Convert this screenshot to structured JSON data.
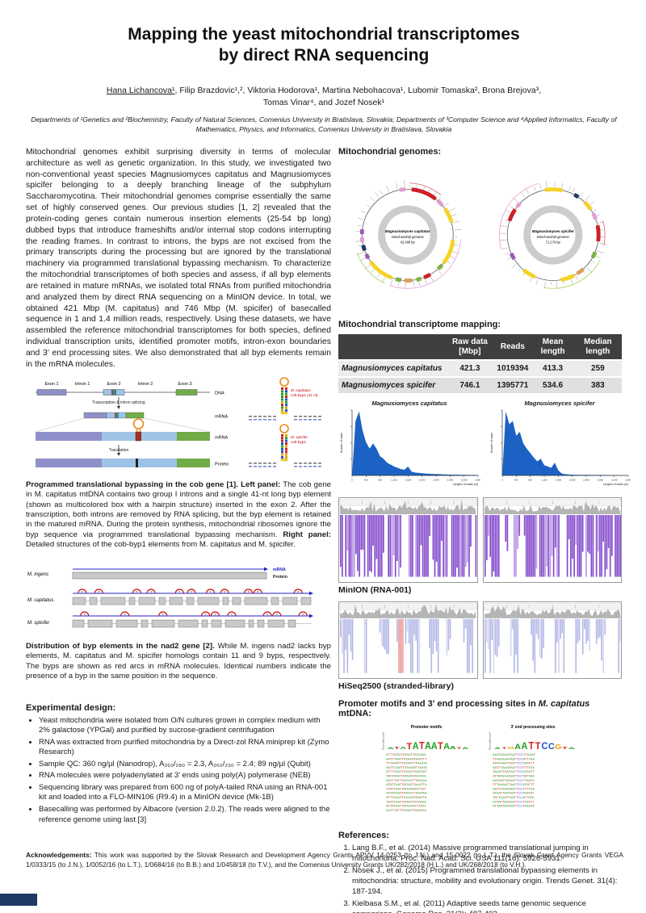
{
  "poster": {
    "title_line1": "Mapping the yeast mitochondrial transcriptomes",
    "title_line2": "by direct RNA sequencing",
    "authors": {
      "presenter": "Hana Lichancova¹",
      "line1_rest": ", Filip Brazdovic¹,², Viktoria Hodorova¹, Martina Nebohacova¹, Lubomir Tomaska², Brona Brejova³,",
      "line2": "Tomas Vinar⁴, and Jozef Nosek¹"
    },
    "affiliations": "Departments of ¹Genetics and ²Biochemistry, Faculty of Natural Sciences, Comenius University in Bratislava, Slovakia; Departments of ³Computer Science and ⁴Applied Informatics, Faculty of Mathematics, Physics, and Informatics, Comenius University in Bratislava, Slovakia",
    "abstract": "Mitochondrial genomes exhibit surprising diversity in terms of molecular architecture as well as genetic organization. In this study, we investigated two non-conventional yeast species Magnusiomyces capitatus and Magnusiomyces spicifer belonging to a deeply branching lineage of the subphylum Saccharomycotina. Their mitochondrial genomes comprise essentially the same set of highly conserved genes. Our previous studies [1, 2] revealed that the protein-coding genes contain numerous insertion elements (25-54 bp long) dubbed byps that introduce frameshifts and/or internal stop codons interrupting the reading frames. In contrast to introns, the byps are not excised from the primary transcripts during the processing but are ignored by the translational machinery via programmed translational bypassing mechanism. To characterize the mitochondrial transcriptomes of both species and assess, if all byp elements are retained in mature mRNAs, we isolated total RNAs from purified mitochondria and analyzed them by direct RNA sequencing on a MinION device. In total, we obtained 421 Mbp (M. capitatus) and 746 Mbp (M. spicifer) of basecalled sequence in 1 and 1.4 million reads, respectively. Using these datasets, we have assembled the reference mitochondrial transcriptomes for both species, defined individual transcription units, identified promoter motifs, intron-exon boundaries and 3' end processing sites. We also demonstrated that all byp elements remain in the mRNA molecules.",
    "figure1": {
      "labels": {
        "exon1": "Exon 1",
        "intron1": "Intron 1",
        "exon2": "Exon 2",
        "intron2": "Intron 2",
        "exon3": "Exon 3",
        "dna": "DNA",
        "mrna": "mRNA",
        "mrna2": "mRNA",
        "protein": "Protein",
        "step1": "Transcription & intron splicing",
        "step2": "Translation",
        "byp_cap_l1": "M. capitatus",
        "byp_cap_l2": "cob-byp1 (41 nt)",
        "byp_spi_l1": "M. spicifer",
        "byp_spi_l2": "cob-byp1"
      },
      "caption_lead1": "Programmed translational bypassing in the cob gene [1]. Left panel:",
      "caption_body1": " The cob gene in M. capitatus mtDNA contains two group I introns and a single 41-nt long byp element (shown as multicolored box with a hairpin structure) inserted in the exon 2. After the transcription, both introns are removed by RNA splicing, but the byp element is retained in the matured mRNA. During the protein synthesis, mitochondrial ribosomes ignore the byp sequence via programmed translational bypassing mechanism. ",
      "caption_lead2": "Right panel:",
      "caption_body2": " Detailed structures of the cob-byp1 elements from M. capitatus and M. spicifer."
    },
    "figure2": {
      "rows": [
        "M. ingens",
        "M. capitatus",
        "M. spicifer"
      ],
      "mrna_label": "mRNA",
      "protein_label": "Protein",
      "byp_counts": [
        0,
        11,
        9
      ],
      "caption_lead": "Distribution of byp elements in the nad2 gene [2].",
      "caption_body": " While M. ingens nad2 lacks byp elements, M. capitatus and M. spicifer homologs contain 11 and 9 byps, respectively. The byps are shown as red arcs in mRNA molecules. Identical numbers indicate the presence of a byp in the same position in the sequence."
    },
    "experimental": {
      "heading": "Experimental design:",
      "bullets": [
        "Yeast mitochondria were isolated from O/N cultures grown in complex medium with 2% galactose (YPGal) and purified by sucrose-gradient centrifugation",
        "RNA was extracted from purified mitochondria by a Direct-zol RNA miniprep kit (Zymo Research)",
        "Sample QC: 360 ng/µl (Nanodrop), A₂₆₀/₂₈₀ = 2.3, A₂₆₀/₂₃₀ = 2.4; 89 ng/µl (Qubit)",
        "RNA molecules were polyadenylated at 3' ends using poly(A) polymerase (NEB)",
        "Sequencing library was prepared from 600 ng of polyA-tailed RNA using an RNA-001 kit and loaded into a FLO-MIN106 (R9.4) in a MinION device (Mk-1B)",
        "Basecalling was performed by Albacore (version 2.0.2). The reads were aligned to the reference genome using last [3]"
      ]
    },
    "right": {
      "genomes_heading": "Mitochondrial genomes:",
      "genome1": {
        "name": "Magnusiomyces capitatus",
        "subtitle": "mitochondrial genome",
        "size": "42,498 bp"
      },
      "genome2": {
        "name": "Magnusiomyces spicifer",
        "subtitle": "mitochondrial genome",
        "size": "71,176 bp"
      },
      "mapping_heading": "Mitochondrial transcriptome mapping:",
      "table": {
        "columns": [
          "",
          "Raw data [Mbp]",
          "Reads",
          "Mean length",
          "Median length"
        ],
        "rows": [
          [
            "Magnusiomyces capitatus",
            "421.3",
            "1019394",
            "413.3",
            "259"
          ],
          [
            "Magnusiomyces spicifer",
            "746.1",
            "1395771",
            "534.6",
            "383"
          ]
        ]
      },
      "minion_label": "MinION (RNA-001)",
      "hiseq_label": "HiSeq2500 (stranded-library)",
      "promoter_heading_prefix": "Promoter motifs and 3' end processing sites in ",
      "promoter_heading_species": "M. capitatus",
      "promoter_heading_suffix": " mtDNA:",
      "logos": {
        "promoter_title": "Promoter motifs",
        "processing_title": "3' end processing sites",
        "promoter_logo": [
          {
            "c": "a",
            "h": 0.25
          },
          {
            "c": "t",
            "h": 0.32
          },
          {
            "c": "a",
            "h": 0.38
          },
          {
            "c": "T",
            "h": 0.82
          },
          {
            "c": "A",
            "h": 0.95
          },
          {
            "c": "T",
            "h": 1
          },
          {
            "c": "A",
            "h": 1
          },
          {
            "c": "A",
            "h": 0.9
          },
          {
            "c": "T",
            "h": 0.95
          },
          {
            "c": "A",
            "h": 0.85
          },
          {
            "c": "a",
            "h": 0.45
          },
          {
            "c": "t",
            "h": 0.3
          },
          {
            "c": "a",
            "h": 0.25
          }
        ],
        "processing_logo": [
          {
            "c": "a",
            "h": 0.25
          },
          {
            "c": "t",
            "h": 0.3
          },
          {
            "c": "g",
            "h": 0.36
          },
          {
            "c": "A",
            "h": 0.72
          },
          {
            "c": "A",
            "h": 0.9
          },
          {
            "c": "T",
            "h": 1
          },
          {
            "c": "T",
            "h": 0.95
          },
          {
            "c": "C",
            "h": 0.9
          },
          {
            "c": "C",
            "h": 0.85
          },
          {
            "c": "G",
            "h": 0.6
          },
          {
            "c": "t",
            "h": 0.35
          },
          {
            "c": "a",
            "h": 0.25
          }
        ],
        "promoter_rows": [
          "ATTTATATTATAATTATAAAT",
          "AATTTAATTATAATATAATTT",
          "TTTAAATTTATAATTTAAATA",
          "AATTCAATTATAATATTAATA",
          "ATTTTAATTATAATTAATAAT",
          "TATATAATTATAATATAATAA",
          "AATTTATTTATAATTTATAAA",
          "ATATTAATTATAATTAAATTA",
          "TTATTAATTATAATATATTAT",
          "AATATAATTATAATTTAATAA",
          "ATTTAAATTATAATATAATTA",
          "TAATTAATTATAATTATATAA",
          "ATTATAATTATAATATTTAAT",
          "AATTTATTTATAATTAATATA"
        ],
        "processing_rows": [
          "AAATAAAATAATTCCTTAAAT",
          "TTAATAAATAATTCCATTTAA",
          "ATATAAATTAATTCCTAATTT",
          "AATTTAAATAATTCCTTTATA",
          "TAAATTAATAATTCCATAATT",
          "ATTATAAATAATTCCTATTAA",
          "AATAATTATAATTCCTTAATA",
          "TTTAAAATTAATTCCATATTT",
          "AATTATAATAATTCCTTTTAA",
          "ATAATTAATAATTCCTAATAT",
          "TATTAAATTAATTCCATTATA",
          "AATATTAATAATTCCTTATTT",
          "ATTAATAATAATTCCTAAATA"
        ]
      },
      "references": {
        "heading": "References:",
        "items": [
          "Lang B.F., et al. (2014) Massive programmed translational jumping in mitochondria. Proc. Natl. Acad. Sci. USA 111(16): 5926-5931.",
          "Nosek J., et al. (2015) Programmed translational bypassing elements in mitochondria: structure, mobility and evolutionary origin. Trends Genet. 31(4): 187-194.",
          "Kielbasa S.M., et al. (2011) Adaptive seeds tame genomic sequence comparison. Genome Res. 21(3): 487-493."
        ]
      }
    },
    "acknowledgements": {
      "lead": "Acknowledgements:",
      "body": " This work was supported by the Slovak Research and Development Agency Grants APVV 14-0253 (to J.N.) and 15-0022 (to L.T.), the Slovak Grant Agency Grants VEGA 1/0333/15 (to J.N.), 1/0052/16 (to L.T.), 1/0684/16 (to B.B.) and 1/0458/18 (to T.V.), and the Comenius University Grants UK/282/2018 (H.L.) and UK/268/2018 (to V.H.)."
    }
  },
  "chart_data": [
    {
      "type": "area",
      "title": "Magnusiomyces capitatus",
      "xlabel": "Lengths of reads (nt)",
      "ylabel": "Number of reads",
      "x_start": 0,
      "x_step": 100,
      "x_max": 3600,
      "x_ticks": [
        0,
        400,
        800,
        1200,
        1600,
        2000,
        2400,
        2800,
        3200,
        3600
      ],
      "ylim_relative": [
        0,
        1
      ],
      "y_relative": [
        0,
        0.85,
        1,
        0.7,
        0.52,
        0.42,
        0.5,
        0.42,
        0.3,
        0.26,
        0.2,
        0.17,
        0.14,
        0.12,
        0.1,
        0.09,
        0.14,
        0.06,
        0.045,
        0.04,
        0.035,
        0.03,
        0.027,
        0.024,
        0.022,
        0.02,
        0.018,
        0.016,
        0.014,
        0.013,
        0.012,
        0.011,
        0.01,
        0.009,
        0.008,
        0.007,
        0.006
      ]
    },
    {
      "type": "area",
      "title": "Magnusiomyces spicifer",
      "xlabel": "Lengths of reads (nt)",
      "ylabel": "Number of reads",
      "x_start": 0,
      "x_step": 100,
      "x_max": 3600,
      "x_ticks": [
        0,
        400,
        800,
        1200,
        1600,
        2000,
        2400,
        2800,
        3200,
        3600
      ],
      "ylim_relative": [
        0,
        1
      ],
      "y_relative": [
        0,
        1,
        0.8,
        0.85,
        0.62,
        0.68,
        0.5,
        0.42,
        0.35,
        0.28,
        0.22,
        0.26,
        0.16,
        0.14,
        0.12,
        0.2,
        0.08,
        0.03,
        0.02,
        0.015,
        0.012,
        0.011,
        0.01,
        0.01,
        0.009,
        0.009,
        0.008,
        0.008,
        0.007,
        0.007,
        0.006,
        0.006,
        0.005,
        0.005,
        0.004,
        0.004,
        0.004
      ]
    }
  ]
}
